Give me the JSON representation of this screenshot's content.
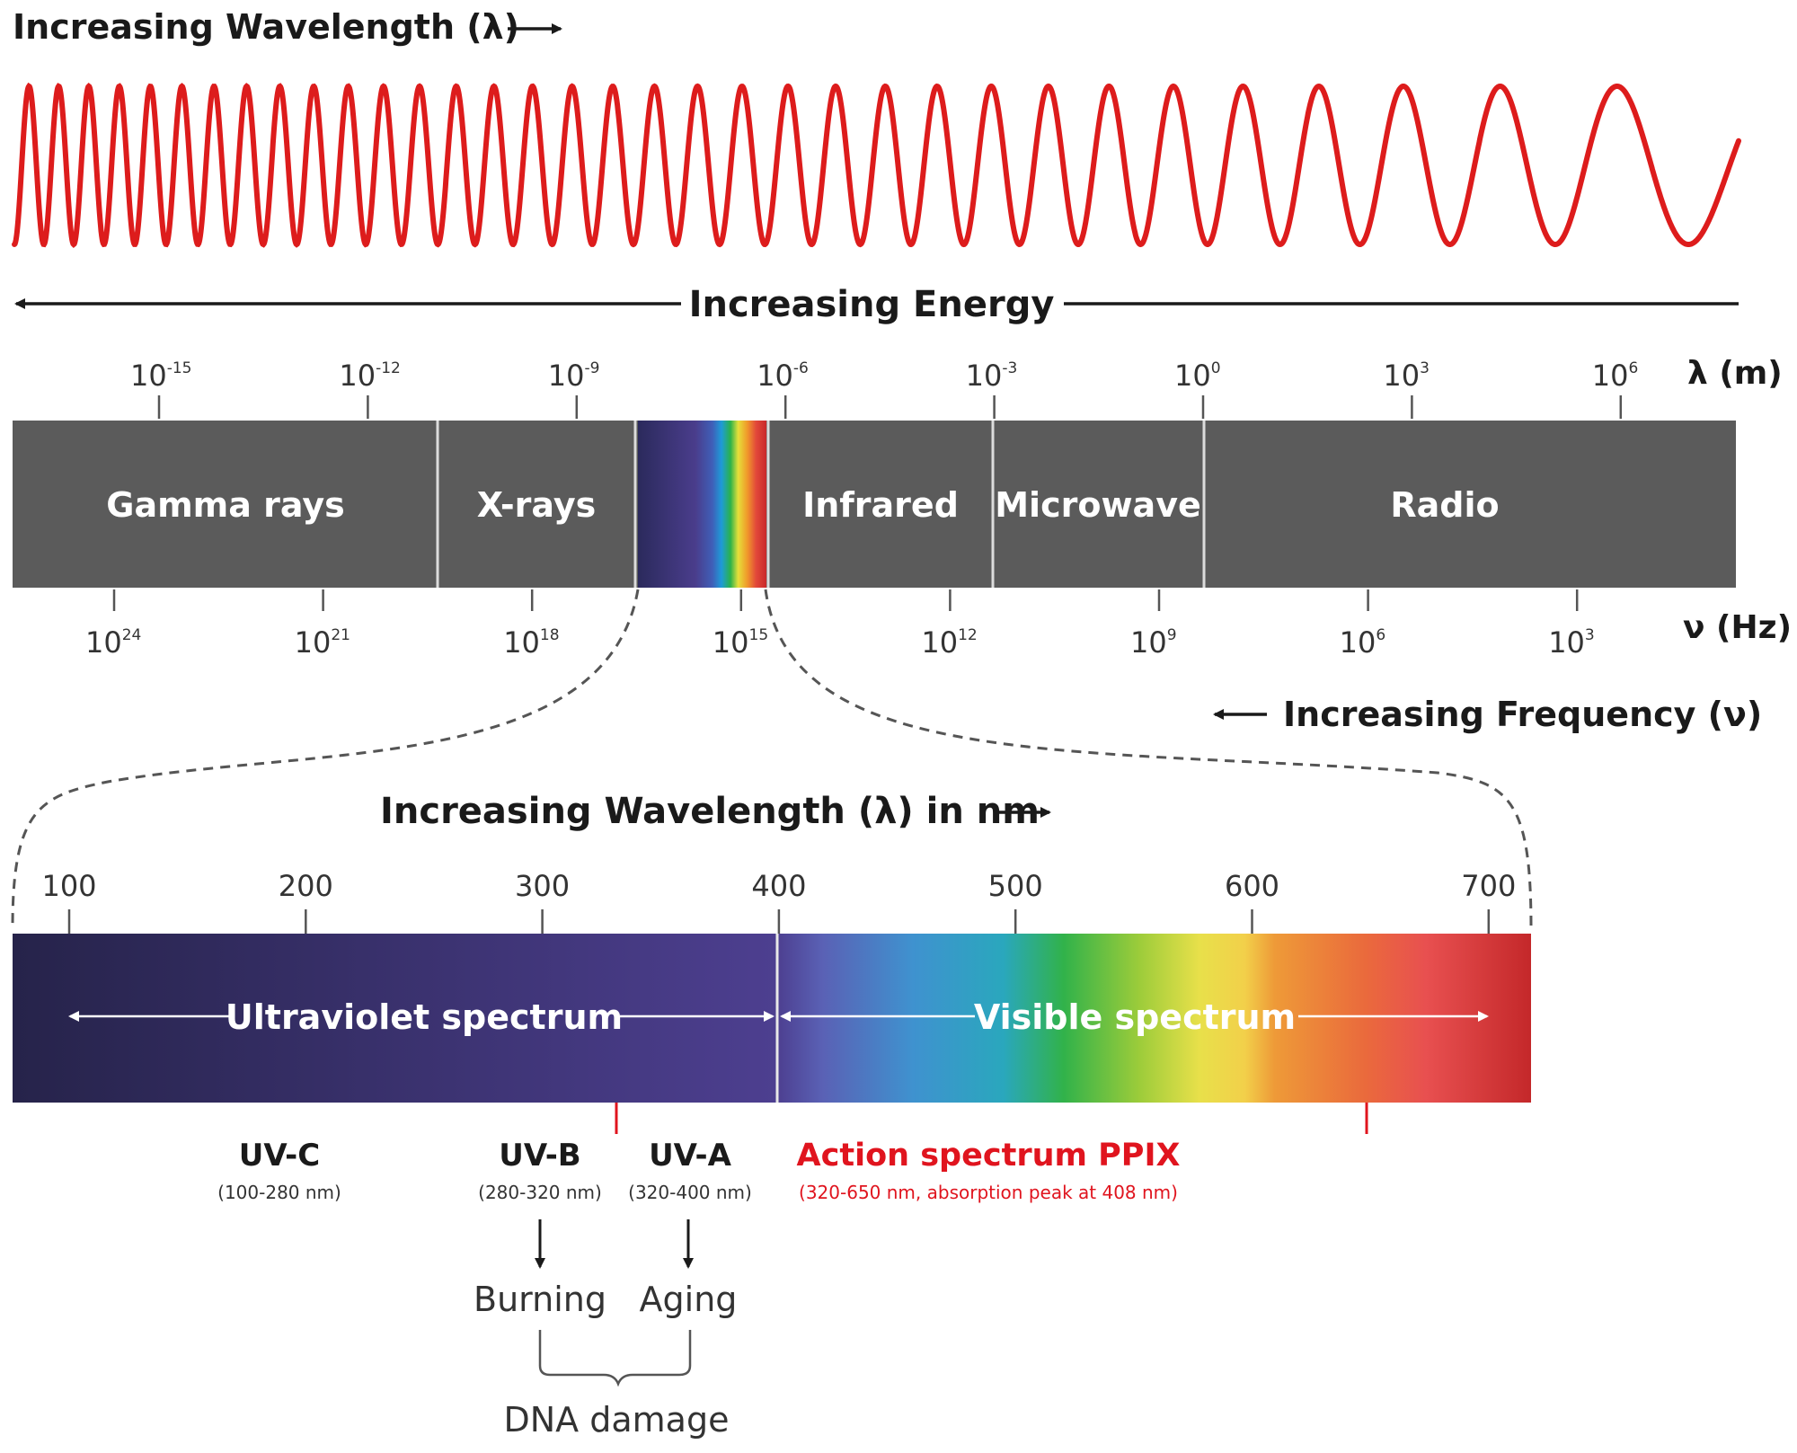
{
  "title_wavelength": "Increasing Wavelength (λ)",
  "energy_label": "Increasing Energy",
  "lambda_axis_label": "λ (m)",
  "freq_axis_label": "ν (Hz)",
  "freq_label": "Increasing Frequency (ν)",
  "nm_title": "Increasing Wavelength (λ) in nm",
  "lambda_ticks": [
    {
      "base": "10",
      "exp": "-15"
    },
    {
      "base": "10",
      "exp": "-12"
    },
    {
      "base": "10",
      "exp": "-9"
    },
    {
      "base": "10",
      "exp": "-6"
    },
    {
      "base": "10",
      "exp": "-3"
    },
    {
      "base": "10",
      "exp": "0"
    },
    {
      "base": "10",
      "exp": "3"
    },
    {
      "base": "10",
      "exp": "6"
    }
  ],
  "freq_ticks": [
    {
      "base": "10",
      "exp": "24"
    },
    {
      "base": "10",
      "exp": "21"
    },
    {
      "base": "10",
      "exp": "18"
    },
    {
      "base": "10",
      "exp": "15"
    },
    {
      "base": "10",
      "exp": "12"
    },
    {
      "base": "10",
      "exp": "9"
    },
    {
      "base": "10",
      "exp": "6"
    },
    {
      "base": "10",
      "exp": "3"
    }
  ],
  "bands": [
    "Gamma rays",
    "X-rays",
    "Infrared",
    "Microwave",
    "Radio"
  ],
  "nm_ticks": [
    "100",
    "200",
    "300",
    "400",
    "500",
    "600",
    "700"
  ],
  "uv_label": "Ultraviolet spectrum",
  "visible_label": "Visible spectrum",
  "uvc": {
    "name": "UV-C",
    "range": "(100-280 nm)"
  },
  "uvb": {
    "name": "UV-B",
    "range": "(280-320 nm)"
  },
  "uva": {
    "name": "UV-A",
    "range": "(320-400 nm)"
  },
  "ppix": {
    "name": "Action spectrum PPIX",
    "range": "(320-650 nm, absorption peak at 408 nm)"
  },
  "burning": "Burning",
  "aging": "Aging",
  "dna": "DNA damage",
  "colors": {
    "wave": "#dd1c1c",
    "band": "#5b5b5b",
    "accent_red": "#e0141e",
    "uv_start": "#2a2650",
    "uv_end": "#4a3d8c"
  }
}
